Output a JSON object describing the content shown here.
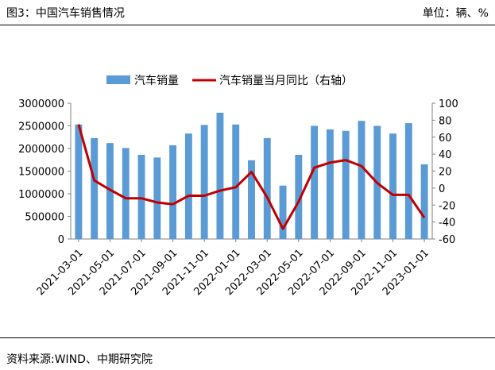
{
  "header": {
    "figure_title": "图3：中国汽车销售情况",
    "unit_label": "单位：辆、%"
  },
  "footer": {
    "source": "资料来源:WIND、中期研究院"
  },
  "colors": {
    "bar": "#5b9bd5",
    "line": "#c00000",
    "axis": "#808080"
  },
  "chart_data": {
    "type": "bar",
    "legend": {
      "position": "top-center",
      "entries": [
        {
          "label": "汽车销量",
          "marker": "bar"
        },
        {
          "label": "汽车销量当月同比（右轴）",
          "marker": "line"
        }
      ]
    },
    "categories": [
      "2021-03",
      "2021-04",
      "2021-05",
      "2021-06",
      "2021-07",
      "2021-08",
      "2021-09",
      "2021-10",
      "2021-11",
      "2021-12",
      "2022-01",
      "2022-02",
      "2022-03",
      "2022-04",
      "2022-05",
      "2022-06",
      "2022-07",
      "2022-08",
      "2022-09",
      "2022-10",
      "2022-11",
      "2022-12",
      "2023-01"
    ],
    "x_tick_labels": [
      "2021-03-01",
      "2021-05-01",
      "2021-07-01",
      "2021-09-01",
      "2021-11-01",
      "2022-01-01",
      "2022-03-01",
      "2022-05-01",
      "2022-07-01",
      "2022-09-01",
      "2022-11-01",
      "2023-01-01"
    ],
    "series": [
      {
        "name": "汽车销量",
        "type": "bar",
        "axis": "left",
        "values": [
          2530000,
          2230000,
          2120000,
          2010000,
          1860000,
          1800000,
          2070000,
          2330000,
          2520000,
          2790000,
          2530000,
          1740000,
          2230000,
          1180000,
          1860000,
          2500000,
          2420000,
          2390000,
          2610000,
          2500000,
          2330000,
          2560000,
          1650000
        ]
      },
      {
        "name": "汽车销量当月同比（右轴）",
        "type": "line",
        "axis": "right",
        "values": [
          75,
          9,
          -2,
          -12,
          -12,
          -17,
          -19,
          -9,
          -9,
          -3,
          1,
          19,
          -11,
          -48,
          -16,
          24,
          30,
          33,
          26,
          6,
          -8,
          -8,
          -35
        ]
      }
    ],
    "y_left": {
      "range": [
        0,
        3000000
      ],
      "ticks": [
        "0",
        "500000",
        "1000000",
        "1500000",
        "2000000",
        "2500000",
        "3000000"
      ]
    },
    "y_right": {
      "range": [
        -60,
        100
      ],
      "ticks": [
        "-60",
        "-40",
        "-20",
        "0",
        "20",
        "40",
        "60",
        "80",
        "100"
      ]
    },
    "grid": false
  }
}
